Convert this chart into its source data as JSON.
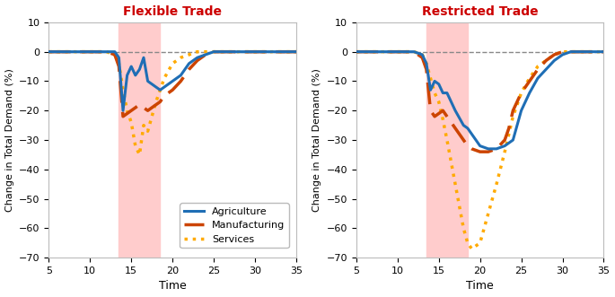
{
  "title_left": "Flexible Trade",
  "title_right": "Restricted Trade",
  "xlabel": "Time",
  "ylabel": "Change in Total Demand (%)",
  "xlim": [
    5,
    35
  ],
  "ylim": [
    -70,
    10
  ],
  "yticks": [
    10,
    0,
    -10,
    -20,
    -30,
    -40,
    -50,
    -60,
    -70
  ],
  "xticks": [
    5,
    10,
    15,
    20,
    25,
    30,
    35
  ],
  "shade_xmin": 13.5,
  "shade_xmax": 18.5,
  "shade_color": "#ffcccc",
  "flex_time": [
    5,
    8,
    10,
    12,
    13,
    13.5,
    14,
    14.5,
    15,
    15.5,
    16,
    16.5,
    17,
    17.5,
    18,
    18.5,
    19,
    20,
    21,
    22,
    23,
    24,
    25,
    28,
    31,
    33,
    35
  ],
  "flex_agri": [
    0,
    0,
    0,
    0,
    0,
    -2,
    -20,
    -8,
    -5,
    -8,
    -6,
    -2,
    -10,
    -11,
    -12,
    -13,
    -12,
    -10,
    -8,
    -4,
    -2,
    -1,
    0,
    0,
    0,
    0,
    0
  ],
  "flex_manu": [
    0,
    0,
    0,
    0,
    -1,
    -5,
    -22,
    -21,
    -20,
    -19,
    -18,
    -19,
    -20,
    -19,
    -18,
    -17,
    -15,
    -13,
    -10,
    -6,
    -3,
    -1,
    0,
    0,
    0,
    0,
    0
  ],
  "flex_serv": [
    0,
    0,
    0,
    0,
    -1,
    -4,
    -13,
    -20,
    -24,
    -32,
    -35,
    -25,
    -27,
    -22,
    -17,
    -13,
    -9,
    -4,
    -2,
    -1,
    0,
    0,
    0,
    0,
    0,
    0,
    0
  ],
  "rest_time": [
    5,
    8,
    10,
    12,
    13,
    13.5,
    14,
    14.5,
    15,
    15.5,
    16,
    17,
    18,
    18.5,
    19,
    20,
    21,
    22,
    23,
    23.5,
    24,
    25,
    26,
    27,
    28,
    29,
    30,
    31,
    33,
    35
  ],
  "rest_agri": [
    0,
    0,
    0,
    0,
    -1,
    -4,
    -13,
    -10,
    -11,
    -14,
    -14,
    -20,
    -25,
    -26,
    -28,
    -32,
    -33,
    -33,
    -32,
    -31,
    -30,
    -20,
    -14,
    -9,
    -6,
    -3,
    -1,
    0,
    0,
    0
  ],
  "rest_manu": [
    0,
    0,
    0,
    0,
    -2,
    -6,
    -20,
    -22,
    -21,
    -20,
    -22,
    -26,
    -30,
    -32,
    -33,
    -34,
    -34,
    -33,
    -30,
    -26,
    -20,
    -14,
    -10,
    -6,
    -3,
    -1,
    0,
    0,
    0,
    0
  ],
  "rest_serv": [
    0,
    0,
    0,
    0,
    -1,
    -4,
    -9,
    -14,
    -17,
    -23,
    -30,
    -45,
    -60,
    -65,
    -67,
    -65,
    -55,
    -45,
    -34,
    -28,
    -22,
    -14,
    -9,
    -5,
    -3,
    -1,
    0,
    0,
    0,
    0
  ],
  "agri_color": "#1f6eb5",
  "manu_color": "#cc4400",
  "serv_color": "#ffaa00",
  "agri_lw": 2.2,
  "manu_lw": 2.5,
  "serv_lw": 2.5
}
